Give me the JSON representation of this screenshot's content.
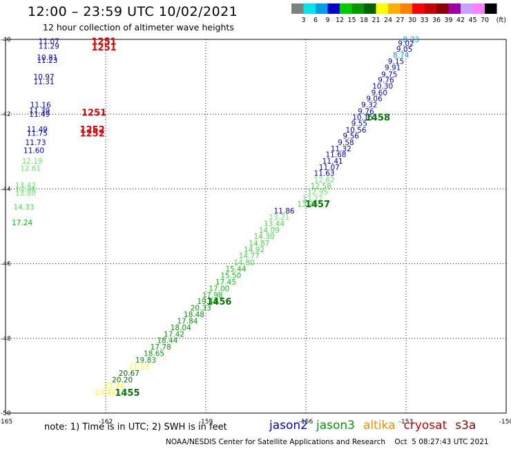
{
  "header": {
    "title": "12:00 – 23:59 UTC 10/02/2021",
    "subtitle": "12 hour collection of altimeter wave heights"
  },
  "colorbar": {
    "unit": "(ft)",
    "labels": [
      "3",
      "6",
      "9",
      "12",
      "15",
      "18",
      "21",
      "24",
      "27",
      "30",
      "33",
      "36",
      "39",
      "42",
      "45",
      "70"
    ],
    "colors": [
      "#808080",
      "#00e5e5",
      "#00a0e5",
      "#0000cd",
      "#00cd00",
      "#009a00",
      "#006400",
      "#ffff00",
      "#ffb000",
      "#ff8000",
      "#ff0000",
      "#c80000",
      "#8c0000",
      "#a000a0",
      "#c8a0ff",
      "#ff80ff",
      "#000000"
    ]
  },
  "footer": {
    "note": "note: 1) Time is in UTC; 2) SWH is in feet",
    "credit": "NOAA/NESDIS Center for Satellite Applications and Research    Oct  5 08:27:43 UTC 2021",
    "legend": [
      {
        "label": "jason2",
        "color": "#0000cd"
      },
      {
        "label": "jason3",
        "color": "#009a00"
      },
      {
        "label": "altika",
        "color": "#ff8c00"
      },
      {
        "label": "cryosat",
        "color": "#cc0000"
      },
      {
        "label": "s3a",
        "color": "#8b0000"
      }
    ]
  },
  "chart_data": {
    "type": "scatter",
    "xlim": [
      -165,
      -150
    ],
    "ylim": [
      -50,
      -40
    ],
    "x_ticks": [
      -165,
      -162,
      -159,
      -156,
      -153,
      -150
    ],
    "y_ticks": [
      -40,
      -42,
      -44,
      -46,
      -48,
      -50
    ],
    "grid": true,
    "swh_points": [
      {
        "x": -152.85,
        "y": -40.0,
        "label": "8.33",
        "color": "#00a0e5"
      },
      {
        "x": -153.0,
        "y": -40.1,
        "label": "9.02",
        "color": "#0000cd"
      },
      {
        "x": -153.05,
        "y": -40.26,
        "label": "9.05",
        "color": "#0000cd"
      },
      {
        "x": -153.15,
        "y": -40.42,
        "label": "8.74",
        "color": "#00a0e5"
      },
      {
        "x": -153.3,
        "y": -40.58,
        "label": "9.15",
        "color": "#0000cd"
      },
      {
        "x": -153.4,
        "y": -40.75,
        "label": "9.91",
        "color": "#0000cd"
      },
      {
        "x": -153.5,
        "y": -40.93,
        "label": "9.75",
        "color": "#0000cd"
      },
      {
        "x": -153.6,
        "y": -41.08,
        "label": "9.76",
        "color": "#0000cd"
      },
      {
        "x": -153.7,
        "y": -41.25,
        "label": "10.30",
        "color": "#0000cd"
      },
      {
        "x": -153.8,
        "y": -41.42,
        "label": "9.60",
        "color": "#0000cd"
      },
      {
        "x": -153.95,
        "y": -41.58,
        "label": "9.06",
        "color": "#0000cd"
      },
      {
        "x": -154.1,
        "y": -41.75,
        "label": "9.32",
        "color": "#0000cd"
      },
      {
        "x": -154.2,
        "y": -41.92,
        "label": "9.76",
        "color": "#0000cd"
      },
      {
        "x": -154.3,
        "y": -42.08,
        "label": "10.15",
        "color": "#0000cd"
      },
      {
        "x": -154.4,
        "y": -42.25,
        "label": "9.55",
        "color": "#0000cd"
      },
      {
        "x": -154.5,
        "y": -42.42,
        "label": "10.56",
        "color": "#0000cd"
      },
      {
        "x": -154.65,
        "y": -42.58,
        "label": "9.56",
        "color": "#0000cd"
      },
      {
        "x": -154.8,
        "y": -42.75,
        "label": "9.58",
        "color": "#0000cd"
      },
      {
        "x": -154.95,
        "y": -42.92,
        "label": "11.32",
        "color": "#0000cd"
      },
      {
        "x": -155.1,
        "y": -43.08,
        "label": "11.68",
        "color": "#0000cd"
      },
      {
        "x": -155.2,
        "y": -43.25,
        "label": "11.41",
        "color": "#0000cd"
      },
      {
        "x": -155.3,
        "y": -43.42,
        "label": "11.07",
        "color": "#0000cd"
      },
      {
        "x": -155.45,
        "y": -43.58,
        "label": "11.63",
        "color": "#0000cd"
      },
      {
        "x": -155.45,
        "y": -43.75,
        "label": "12.62",
        "color": "#66ee66"
      },
      {
        "x": -155.55,
        "y": -43.92,
        "label": "12.58",
        "color": "#44dd44"
      },
      {
        "x": -155.65,
        "y": -44.08,
        "label": "12.95",
        "color": "#66ee66"
      },
      {
        "x": -155.8,
        "y": -44.25,
        "label": "13.22",
        "color": "#66ee66"
      },
      {
        "x": -155.95,
        "y": -44.4,
        "label": "13.26",
        "color": "#44dd44"
      },
      {
        "x": -156.65,
        "y": -44.58,
        "label": "11.86",
        "color": "#0000cd"
      },
      {
        "x": -156.8,
        "y": -44.75,
        "label": "13.21",
        "color": "#66ee66"
      },
      {
        "x": -156.95,
        "y": -44.93,
        "label": "13.44",
        "color": "#44dd44"
      },
      {
        "x": -157.1,
        "y": -45.1,
        "label": "14.09",
        "color": "#44dd44"
      },
      {
        "x": -157.25,
        "y": -45.27,
        "label": "14.30",
        "color": "#44dd44"
      },
      {
        "x": -157.4,
        "y": -45.45,
        "label": "14.87",
        "color": "#44dd44"
      },
      {
        "x": -157.55,
        "y": -45.62,
        "label": "14.92",
        "color": "#44dd44"
      },
      {
        "x": -157.7,
        "y": -45.79,
        "label": "14.77",
        "color": "#44dd44"
      },
      {
        "x": -157.85,
        "y": -45.97,
        "label": "14.80",
        "color": "#44dd44"
      },
      {
        "x": -158.1,
        "y": -46.14,
        "label": "15.44",
        "color": "#00cd00"
      },
      {
        "x": -158.25,
        "y": -46.31,
        "label": "15.50",
        "color": "#00cd00"
      },
      {
        "x": -158.4,
        "y": -46.49,
        "label": "17.45",
        "color": "#00cd00"
      },
      {
        "x": -158.6,
        "y": -46.66,
        "label": "17.00",
        "color": "#00cd00"
      },
      {
        "x": -158.8,
        "y": -46.84,
        "label": "17.98",
        "color": "#00cd00"
      },
      {
        "x": -158.95,
        "y": -47.01,
        "label": "19.41",
        "color": "#009a00"
      },
      {
        "x": -159.15,
        "y": -47.18,
        "label": "20.33",
        "color": "#009a00"
      },
      {
        "x": -159.35,
        "y": -47.36,
        "label": "18.48",
        "color": "#009a00"
      },
      {
        "x": -159.55,
        "y": -47.53,
        "label": "17.84",
        "color": "#009a00"
      },
      {
        "x": -159.75,
        "y": -47.71,
        "label": "18.04",
        "color": "#009a00"
      },
      {
        "x": -159.95,
        "y": -47.88,
        "label": "17.42",
        "color": "#009a00"
      },
      {
        "x": -160.15,
        "y": -48.05,
        "label": "18.44",
        "color": "#009a00"
      },
      {
        "x": -160.35,
        "y": -48.23,
        "label": "17.78",
        "color": "#009a00"
      },
      {
        "x": -160.55,
        "y": -48.4,
        "label": "18.65",
        "color": "#009a00"
      },
      {
        "x": -160.8,
        "y": -48.58,
        "label": "19.83",
        "color": "#009a00"
      },
      {
        "x": -161.0,
        "y": -48.75,
        "label": "21.53",
        "color": "#ffff00"
      },
      {
        "x": -161.3,
        "y": -48.93,
        "label": "20.67",
        "color": "#006400"
      },
      {
        "x": -161.5,
        "y": -49.1,
        "label": "20.20",
        "color": "#006400"
      },
      {
        "x": -161.75,
        "y": -49.27,
        "label": "21.74",
        "color": "#ffff00"
      },
      {
        "x": -162.0,
        "y": -49.45,
        "label": "23.40",
        "color": "#ffff00"
      },
      {
        "x": -163.7,
        "y": -40.05,
        "label": "11.07",
        "color": "#0000cd"
      },
      {
        "x": -163.7,
        "y": -40.18,
        "label": "11.29",
        "color": "#0000cd"
      },
      {
        "x": -163.75,
        "y": -40.48,
        "label": "10.81",
        "color": "#0000cd"
      },
      {
        "x": -163.75,
        "y": -40.55,
        "label": "11.23",
        "color": "#0000cd"
      },
      {
        "x": -163.85,
        "y": -41.0,
        "label": "10.97",
        "color": "#0000cd"
      },
      {
        "x": -163.85,
        "y": -41.13,
        "label": "11.31",
        "color": "#0000cd"
      },
      {
        "x": -163.95,
        "y": -41.75,
        "label": "11.16",
        "color": "#0000cd"
      },
      {
        "x": -163.98,
        "y": -41.9,
        "label": "11.39",
        "color": "#0000cd"
      },
      {
        "x": -163.98,
        "y": -42.0,
        "label": "11.49",
        "color": "#0000cd"
      },
      {
        "x": -164.05,
        "y": -42.4,
        "label": "11.49",
        "color": "#0000cd"
      },
      {
        "x": -164.05,
        "y": -42.5,
        "label": "11.75",
        "color": "#0000cd"
      },
      {
        "x": -164.1,
        "y": -42.75,
        "label": "11.73",
        "color": "#0000cd"
      },
      {
        "x": -164.15,
        "y": -42.97,
        "label": "11.60",
        "color": "#0000cd"
      },
      {
        "x": -164.2,
        "y": -43.25,
        "label": "12.19",
        "color": "#66ee66"
      },
      {
        "x": -164.25,
        "y": -43.45,
        "label": "12.61",
        "color": "#66ee66"
      },
      {
        "x": -164.4,
        "y": -43.9,
        "label": "13.42",
        "color": "#66ee66"
      },
      {
        "x": -164.4,
        "y": -44.0,
        "label": "13.46",
        "color": "#66ee66"
      },
      {
        "x": -164.4,
        "y": -44.1,
        "label": "13.80",
        "color": "#66ee66"
      },
      {
        "x": -164.45,
        "y": -44.48,
        "label": "14.33",
        "color": "#44dd44"
      },
      {
        "x": -164.5,
        "y": -44.9,
        "label": "17.24",
        "color": "#00cd00"
      }
    ],
    "time_points": [
      {
        "x": -162.05,
        "y": -40.05,
        "label": "1251",
        "color": "#dd0000"
      },
      {
        "x": -162.05,
        "y": -40.2,
        "label": "1251",
        "color": "#dd0000"
      },
      {
        "x": -162.35,
        "y": -41.95,
        "label": "1251",
        "color": "#dd0000"
      },
      {
        "x": -162.4,
        "y": -42.4,
        "label": "1252",
        "color": "#dd0000"
      },
      {
        "x": -162.4,
        "y": -42.5,
        "label": "1252",
        "color": "#dd0000"
      },
      {
        "x": -153.85,
        "y": -42.08,
        "label": "1458",
        "color": "#007700"
      },
      {
        "x": -155.65,
        "y": -44.4,
        "label": "1457",
        "color": "#007700"
      },
      {
        "x": -158.6,
        "y": -47.01,
        "label": "1456",
        "color": "#007700"
      },
      {
        "x": -161.35,
        "y": -49.45,
        "label": "1455",
        "color": "#007700"
      }
    ]
  }
}
